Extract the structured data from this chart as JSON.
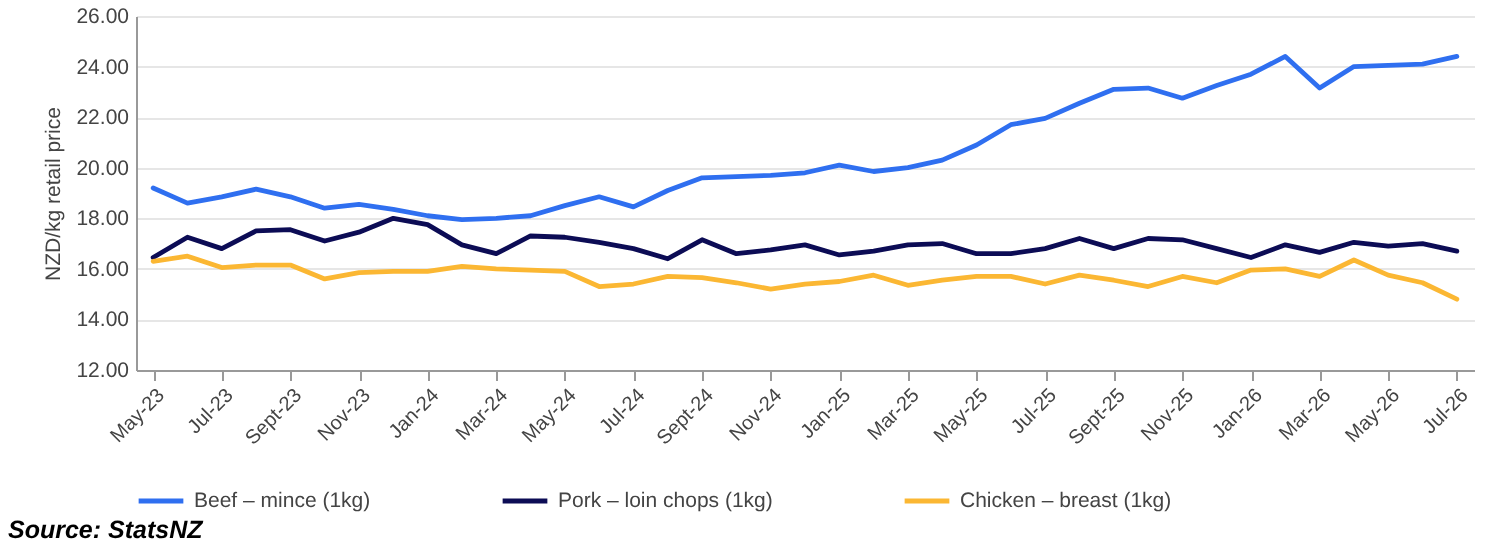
{
  "chart_data": {
    "type": "line",
    "ylabel": "NZD/kg retail price",
    "categories": [
      "May-23",
      null,
      "Jul-23",
      null,
      "Sept-23",
      null,
      "Nov-23",
      null,
      "Jan-24",
      null,
      "Mar-24",
      null,
      "May-24",
      null,
      "Jul-24",
      null,
      "Sept-24",
      null,
      "Nov-24",
      null,
      "Jan-25",
      null,
      "Mar-25",
      null,
      "May-25",
      null,
      "Jul-25",
      null,
      "Sept-25",
      null,
      "Nov-25",
      null,
      "Jan-26",
      null,
      "Mar-26",
      null,
      "May-26",
      null,
      "Jul-26"
    ],
    "series": [
      {
        "name": "Beef – mince (1kg)",
        "color": "#2f6ff0",
        "values": [
          19.2,
          18.6,
          18.85,
          19.15,
          18.85,
          18.4,
          18.55,
          18.35,
          18.1,
          17.95,
          18.0,
          18.1,
          18.5,
          18.85,
          18.45,
          19.1,
          19.6,
          19.65,
          19.7,
          19.8,
          20.1,
          19.85,
          20.0,
          20.3,
          20.9,
          21.7,
          21.95,
          22.55,
          23.1,
          23.15,
          22.75,
          23.25,
          23.7,
          24.4,
          23.15,
          24.0,
          24.05,
          24.1,
          24.4
        ]
      },
      {
        "name": "Pork – loin chops (1kg)",
        "color": "#0c0c55",
        "values": [
          16.45,
          17.25,
          16.8,
          17.5,
          17.55,
          17.1,
          17.45,
          18.0,
          17.75,
          16.95,
          16.6,
          17.3,
          17.25,
          17.05,
          16.8,
          16.4,
          17.15,
          16.6,
          16.75,
          16.95,
          16.55,
          16.7,
          16.95,
          17.0,
          16.6,
          16.6,
          16.8,
          17.2,
          16.8,
          17.2,
          17.15,
          16.8,
          16.45,
          16.95,
          16.65,
          17.05,
          16.9,
          17.0,
          16.7
        ]
      },
      {
        "name": "Chicken – breast (1kg)",
        "color": "#fbb733",
        "values": [
          16.3,
          16.5,
          16.05,
          16.15,
          16.15,
          15.6,
          15.85,
          15.9,
          15.9,
          16.1,
          16.0,
          15.95,
          15.9,
          15.3,
          15.4,
          15.7,
          15.65,
          15.45,
          15.2,
          15.4,
          15.5,
          15.75,
          15.35,
          15.55,
          15.7,
          15.7,
          15.4,
          15.75,
          15.55,
          15.3,
          15.7,
          15.45,
          15.95,
          16.0,
          15.7,
          16.35,
          15.75,
          15.45,
          14.8
        ]
      }
    ],
    "ylim": [
      12,
      26
    ],
    "yticks": [
      {
        "value": 12,
        "label": "12.00"
      },
      {
        "value": 14,
        "label": "14.00"
      },
      {
        "value": 16,
        "label": "16.00"
      },
      {
        "value": 18,
        "label": "18.00"
      },
      {
        "value": 20,
        "label": "20.00"
      },
      {
        "value": 22,
        "label": "22.00"
      },
      {
        "value": 24,
        "label": "24.00"
      },
      {
        "value": 26,
        "label": "26.00"
      }
    ],
    "grid": "y",
    "legend": "bottom",
    "marker": "none",
    "line_style": "solid",
    "annotations": [
      "Source: StatsNZ"
    ]
  }
}
